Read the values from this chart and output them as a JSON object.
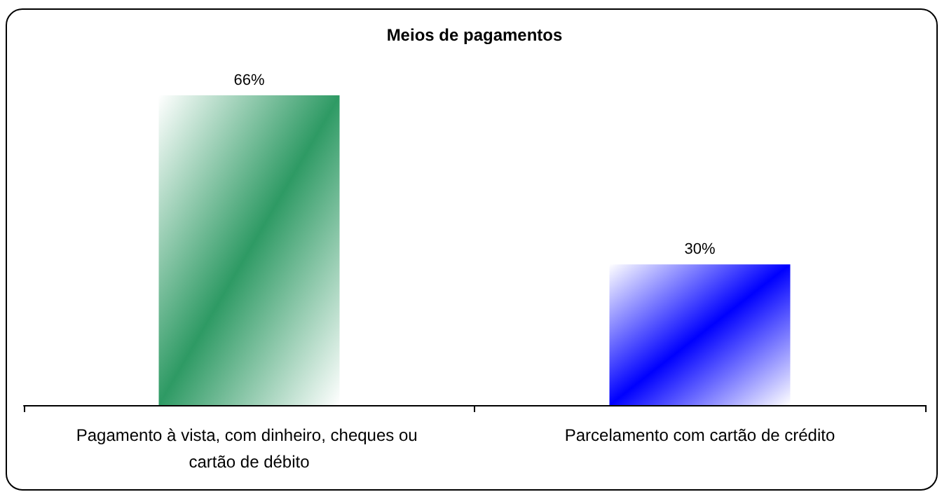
{
  "chart_data": {
    "type": "bar",
    "title": "Meios de pagamentos",
    "categories": [
      "Pagamento à vista, com dinheiro, cheques ou cartão de débito",
      "Parcelamento com cartão de crédito"
    ],
    "values": [
      66,
      30
    ],
    "colors": [
      "#2e9a64",
      "#0000ff"
    ],
    "value_labels": [
      "66%",
      "30%"
    ],
    "grid": false
  }
}
